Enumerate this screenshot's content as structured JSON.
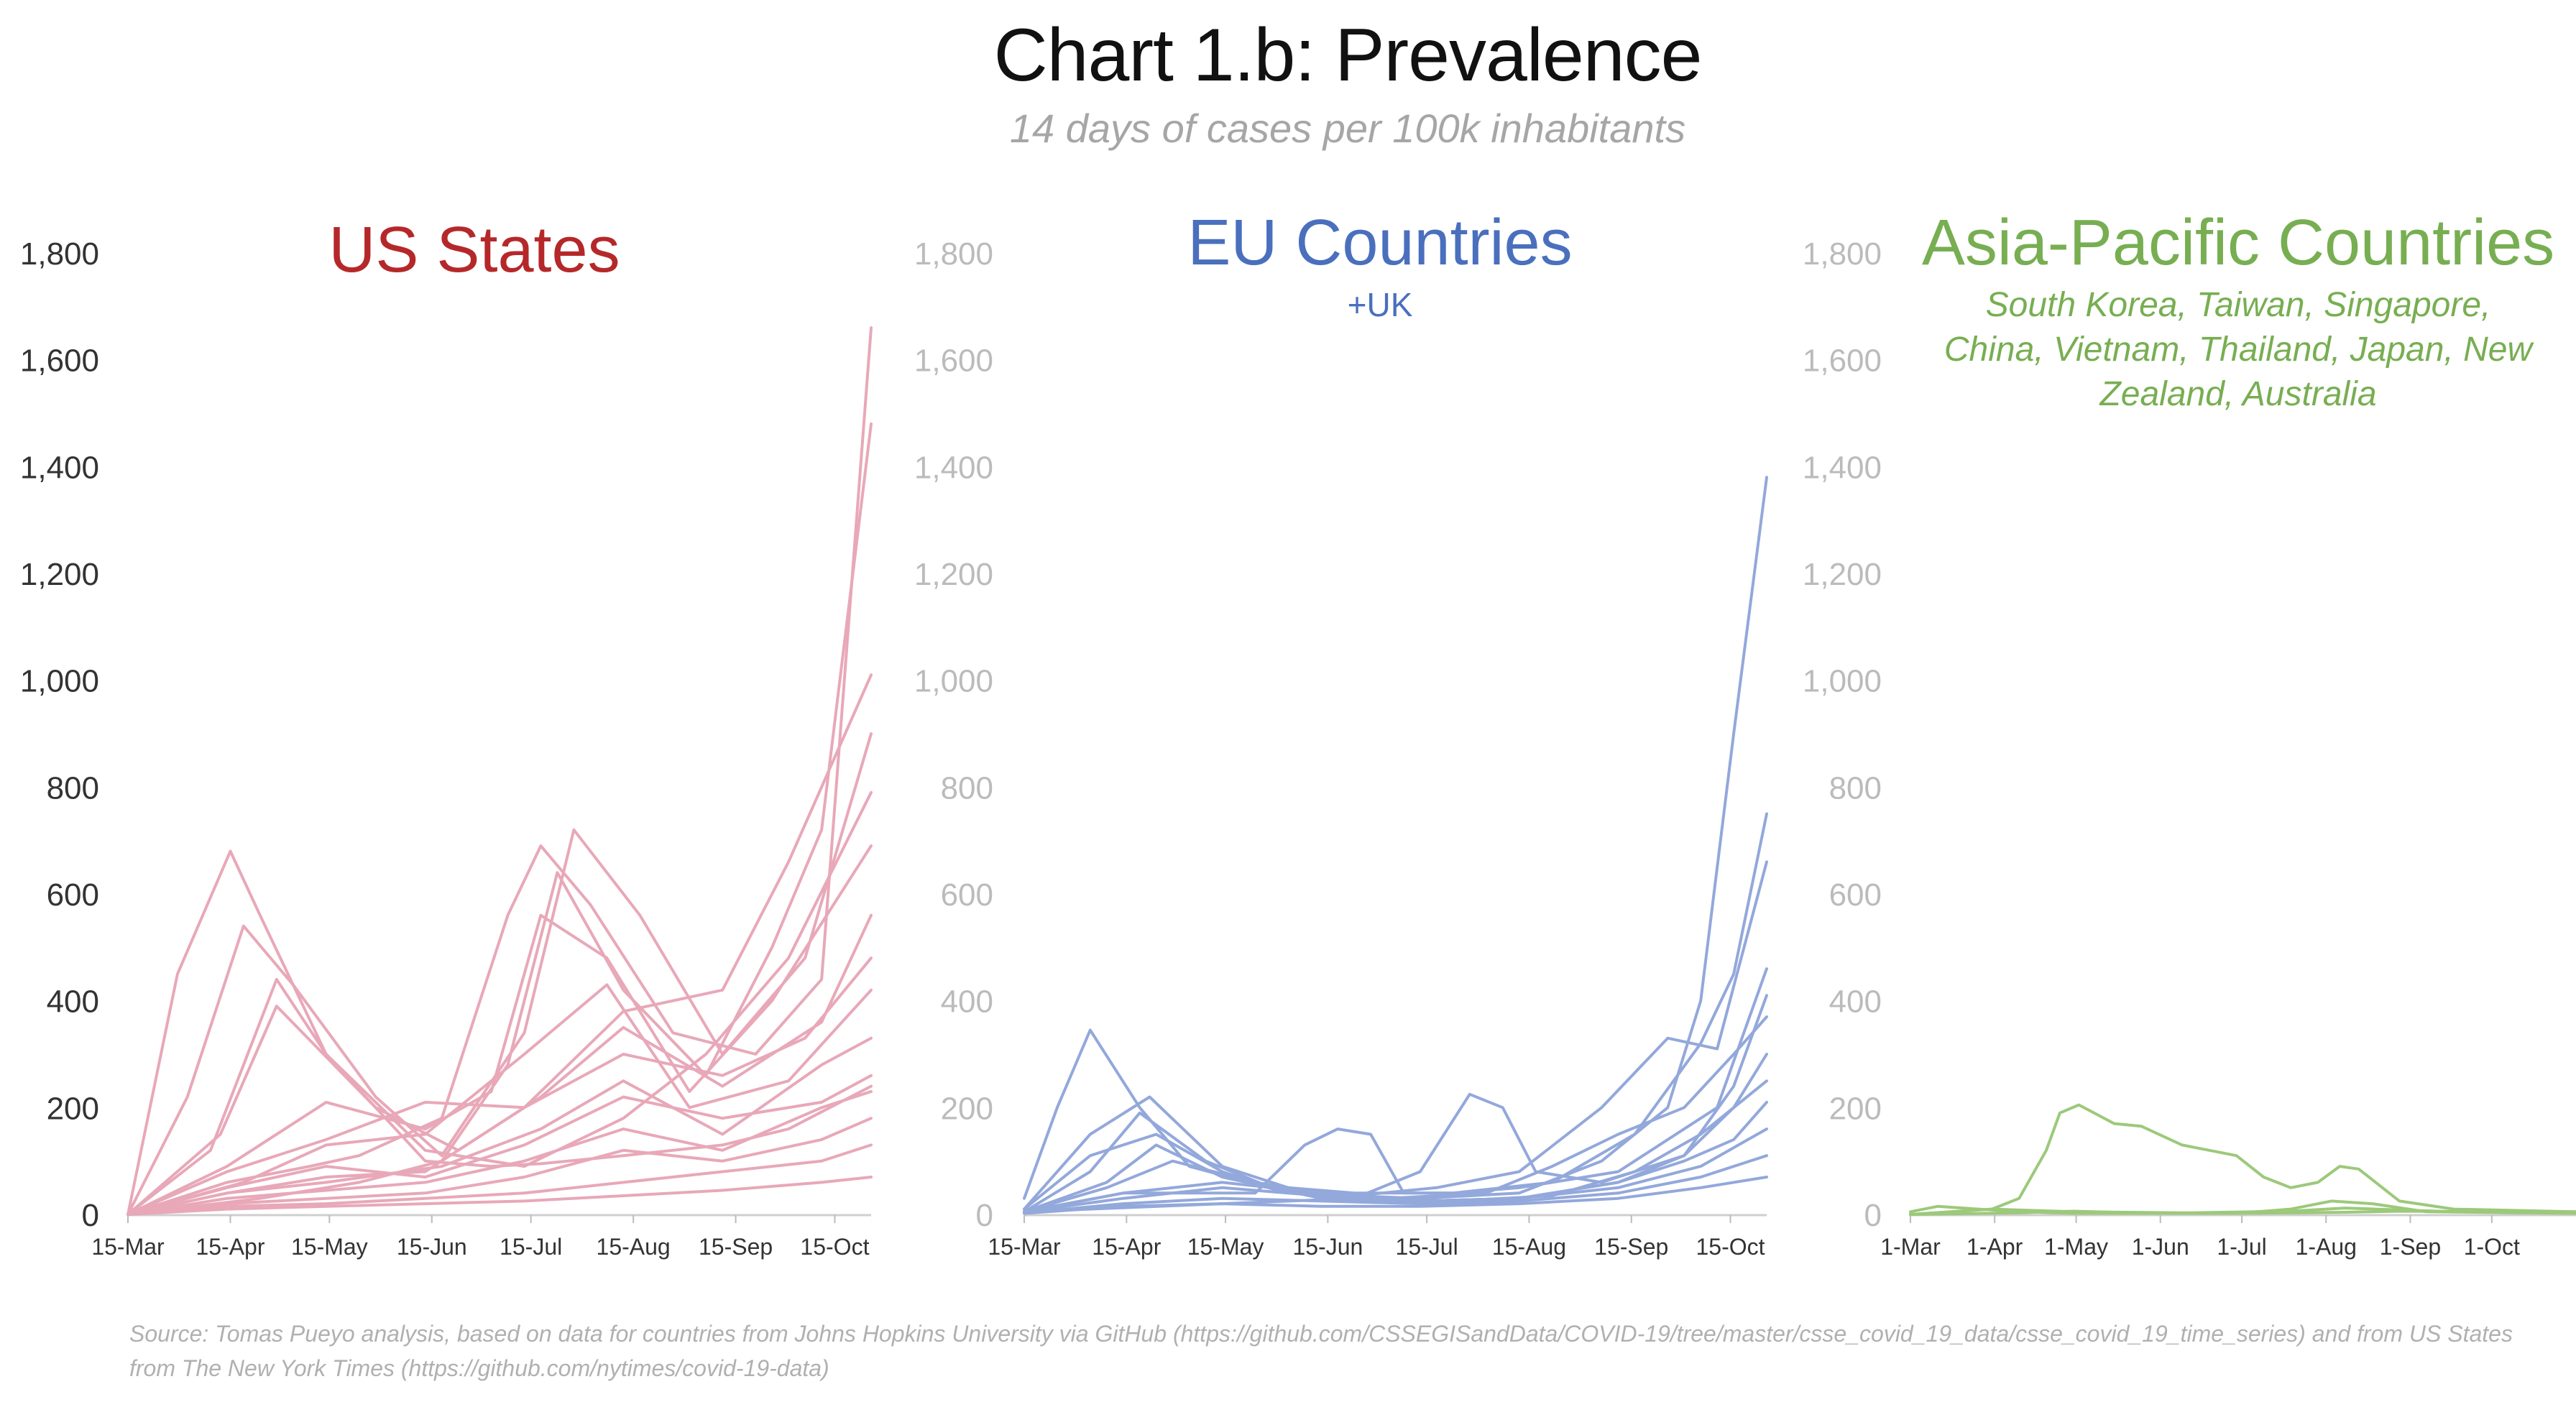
{
  "title": "Chart 1.b: Prevalence",
  "subtitle": "14 days of cases per 100k inhabitants",
  "source": "Source: Tomas Pueyo analysis, based on data for countries from Johns Hopkins University via GitHub (https://github.com/CSSEGISandData/COVID-19/tree/master/csse_covid_19_data/csse_covid_19_time_series) and from US States from The New York Times (https://github.com/nytimes/covid-19-data)",
  "chart_data": [
    {
      "type": "line",
      "title": "US States",
      "subtitle": "",
      "color": "#e8a8b8",
      "title_color": "#b5282a",
      "axis_color": "#333333",
      "ylim": [
        0,
        1800
      ],
      "yticks": [
        0,
        200,
        400,
        600,
        800,
        1000,
        1200,
        1400,
        1600,
        1800
      ],
      "ytick_labels": [
        "0",
        "200",
        "400",
        "600",
        "800",
        "1,000",
        "1,200",
        "1,400",
        "1,600",
        "1,800"
      ],
      "xlim": [
        0,
        225
      ],
      "xticks": [
        0,
        31,
        61,
        92,
        122,
        153,
        184,
        214
      ],
      "xtick_labels": [
        "15-Mar",
        "15-Apr",
        "15-May",
        "15-Jun",
        "15-Jul",
        "15-Aug",
        "15-Sep",
        "15-Oct"
      ],
      "series": [
        {
          "name": "state-1",
          "x": [
            0,
            15,
            31,
            40,
            60,
            90,
            110,
            125,
            150,
            180,
            200,
            225
          ],
          "y": [
            0,
            450,
            680,
            560,
            300,
            100,
            90,
            95,
            110,
            130,
            160,
            240
          ]
        },
        {
          "name": "state-2",
          "x": [
            0,
            18,
            35,
            50,
            75,
            95,
            120,
            135,
            155,
            180,
            205,
            225
          ],
          "y": [
            0,
            220,
            540,
            430,
            220,
            110,
            340,
            720,
            560,
            300,
            480,
            900
          ]
        },
        {
          "name": "state-3",
          "x": [
            0,
            30,
            55,
            70,
            95,
            115,
            125,
            140,
            165,
            190,
            210,
            225
          ],
          "y": [
            0,
            60,
            90,
            110,
            180,
            560,
            690,
            580,
            340,
            300,
            440,
            1660
          ]
        },
        {
          "name": "state-4",
          "x": [
            0,
            40,
            70,
            95,
            115,
            130,
            150,
            175,
            195,
            210,
            225
          ],
          "y": [
            0,
            30,
            60,
            100,
            280,
            640,
            420,
            260,
            500,
            720,
            1480
          ]
        },
        {
          "name": "state-5",
          "x": [
            0,
            30,
            60,
            90,
            120,
            150,
            180,
            200,
            225
          ],
          "y": [
            0,
            40,
            70,
            80,
            200,
            380,
            420,
            660,
            1010
          ]
        },
        {
          "name": "state-6",
          "x": [
            0,
            25,
            45,
            60,
            90,
            120,
            150,
            175,
            200,
            225
          ],
          "y": [
            0,
            120,
            440,
            300,
            120,
            90,
            180,
            300,
            480,
            790
          ]
        },
        {
          "name": "state-7",
          "x": [
            0,
            30,
            60,
            90,
            110,
            125,
            145,
            170,
            195,
            225
          ],
          "y": [
            0,
            90,
            210,
            160,
            230,
            560,
            480,
            230,
            400,
            690
          ]
        },
        {
          "name": "state-8",
          "x": [
            0,
            28,
            45,
            75,
            100,
            125,
            150,
            180,
            210,
            225
          ],
          "y": [
            0,
            150,
            390,
            200,
            120,
            220,
            350,
            240,
            360,
            560
          ]
        },
        {
          "name": "state-9",
          "x": [
            0,
            30,
            60,
            90,
            120,
            150,
            180,
            205,
            225
          ],
          "y": [
            0,
            80,
            140,
            210,
            200,
            300,
            260,
            330,
            480
          ]
        },
        {
          "name": "state-10",
          "x": [
            0,
            35,
            60,
            90,
            120,
            145,
            170,
            200,
            225
          ],
          "y": [
            0,
            60,
            130,
            150,
            300,
            430,
            200,
            250,
            420
          ]
        },
        {
          "name": "state-11",
          "x": [
            0,
            30,
            60,
            95,
            125,
            150,
            180,
            210,
            225
          ],
          "y": [
            0,
            40,
            60,
            90,
            160,
            250,
            150,
            280,
            330
          ]
        },
        {
          "name": "state-12",
          "x": [
            0,
            30,
            60,
            90,
            120,
            150,
            180,
            210,
            225
          ],
          "y": [
            0,
            50,
            90,
            70,
            130,
            220,
            180,
            210,
            260
          ]
        },
        {
          "name": "state-13",
          "x": [
            0,
            30,
            60,
            90,
            120,
            150,
            180,
            210,
            225
          ],
          "y": [
            0,
            30,
            45,
            60,
            100,
            160,
            120,
            200,
            230
          ]
        },
        {
          "name": "state-14",
          "x": [
            0,
            30,
            60,
            90,
            120,
            150,
            180,
            210,
            225
          ],
          "y": [
            0,
            20,
            30,
            40,
            70,
            120,
            100,
            140,
            180
          ]
        },
        {
          "name": "state-15",
          "x": [
            0,
            30,
            60,
            90,
            120,
            150,
            180,
            210,
            225
          ],
          "y": [
            0,
            15,
            20,
            30,
            40,
            60,
            80,
            100,
            130
          ]
        },
        {
          "name": "state-16",
          "x": [
            0,
            30,
            60,
            90,
            120,
            150,
            180,
            210,
            225
          ],
          "y": [
            0,
            10,
            15,
            20,
            25,
            35,
            45,
            60,
            70
          ]
        }
      ]
    },
    {
      "type": "line",
      "title": "EU Countries",
      "subtitle": "+UK",
      "color": "#93a8db",
      "title_color": "#4a6fbd",
      "axis_color": "#bbbbbb",
      "ylim": [
        0,
        1800
      ],
      "yticks": [
        0,
        200,
        400,
        600,
        800,
        1000,
        1200,
        1400,
        1600,
        1800
      ],
      "ytick_labels": [
        "0",
        "200",
        "400",
        "600",
        "800",
        "1,000",
        "1,200",
        "1,400",
        "1,600",
        "1,800"
      ],
      "xlim": [
        0,
        225
      ],
      "xticks": [
        0,
        31,
        61,
        92,
        122,
        153,
        184,
        214
      ],
      "xtick_labels": [
        "15-Mar",
        "15-Apr",
        "15-May",
        "15-Jun",
        "15-Jul",
        "15-Aug",
        "15-Sep",
        "15-Oct"
      ],
      "series": [
        {
          "name": "country-1",
          "x": [
            0,
            10,
            20,
            35,
            50,
            80,
            120,
            150,
            175,
            195,
            205,
            215,
            225
          ],
          "y": [
            30,
            200,
            345,
            200,
            90,
            40,
            30,
            40,
            100,
            200,
            400,
            900,
            1380
          ]
        },
        {
          "name": "country-2",
          "x": [
            0,
            20,
            38,
            60,
            80,
            100,
            130,
            160,
            185,
            205,
            215,
            225
          ],
          "y": [
            10,
            150,
            220,
            90,
            50,
            40,
            40,
            60,
            150,
            320,
            450,
            750
          ]
        },
        {
          "name": "country-3",
          "x": [
            0,
            20,
            40,
            60,
            80,
            100,
            125,
            150,
            175,
            195,
            210,
            225
          ],
          "y": [
            10,
            110,
            150,
            80,
            40,
            35,
            50,
            80,
            200,
            330,
            310,
            660
          ]
        },
        {
          "name": "country-4",
          "x": [
            0,
            30,
            70,
            85,
            95,
            105,
            115,
            130,
            150,
            180,
            210,
            225
          ],
          "y": [
            5,
            40,
            40,
            130,
            160,
            150,
            40,
            40,
            50,
            80,
            200,
            460
          ]
        },
        {
          "name": "country-5",
          "x": [
            0,
            60,
            100,
            120,
            135,
            145,
            155,
            175,
            200,
            215,
            225
          ],
          "y": [
            5,
            20,
            30,
            80,
            225,
            200,
            80,
            60,
            110,
            240,
            410
          ]
        },
        {
          "name": "country-6",
          "x": [
            0,
            20,
            35,
            55,
            75,
            110,
            140,
            160,
            180,
            200,
            215,
            225
          ],
          "y": [
            5,
            80,
            190,
            100,
            50,
            30,
            40,
            90,
            150,
            200,
            300,
            370
          ]
        },
        {
          "name": "country-7",
          "x": [
            0,
            25,
            40,
            60,
            90,
            120,
            150,
            180,
            200,
            215,
            225
          ],
          "y": [
            5,
            60,
            130,
            70,
            30,
            25,
            30,
            60,
            110,
            200,
            300
          ]
        },
        {
          "name": "country-8",
          "x": [
            0,
            25,
            45,
            70,
            100,
            130,
            160,
            185,
            205,
            225
          ],
          "y": [
            5,
            50,
            100,
            60,
            30,
            25,
            35,
            80,
            150,
            250
          ]
        },
        {
          "name": "country-9",
          "x": [
            0,
            30,
            60,
            90,
            120,
            150,
            180,
            200,
            215,
            225
          ],
          "y": [
            5,
            40,
            60,
            40,
            25,
            30,
            60,
            100,
            140,
            210
          ]
        },
        {
          "name": "country-10",
          "x": [
            0,
            30,
            60,
            90,
            120,
            150,
            180,
            205,
            225
          ],
          "y": [
            5,
            30,
            50,
            35,
            25,
            30,
            50,
            90,
            160
          ]
        },
        {
          "name": "country-11",
          "x": [
            0,
            30,
            60,
            90,
            120,
            150,
            180,
            205,
            225
          ],
          "y": [
            3,
            20,
            30,
            25,
            20,
            25,
            40,
            70,
            110
          ]
        },
        {
          "name": "country-12",
          "x": [
            0,
            30,
            60,
            90,
            120,
            150,
            180,
            205,
            225
          ],
          "y": [
            2,
            15,
            20,
            15,
            15,
            20,
            30,
            50,
            70
          ]
        }
      ]
    },
    {
      "type": "line",
      "title": "Asia-Pacific Countries",
      "subtitle": "South Korea, Taiwan, Singapore, China, Vietnam, Thailand, Japan, New Zealand, Australia",
      "color": "#9cc97a",
      "title_color": "#78ae52",
      "axis_color": "#bbbbbb",
      "ylim": [
        0,
        1800
      ],
      "yticks": [
        0,
        200,
        400,
        600,
        800,
        1000,
        1200,
        1400,
        1600,
        1800
      ],
      "ytick_labels": [
        "0",
        "200",
        "400",
        "600",
        "800",
        "1,000",
        "1,200",
        "1,400",
        "1,600",
        "1,800"
      ],
      "xlim": [
        0,
        245
      ],
      "xticks": [
        0,
        31,
        61,
        92,
        122,
        153,
        184,
        214
      ],
      "xtick_labels": [
        "1-Mar",
        "1-Apr",
        "1-May",
        "1-Jun",
        "1-Jul",
        "1-Aug",
        "1-Sep",
        "1-Oct"
      ],
      "series": [
        {
          "name": "singapore",
          "x": [
            0,
            30,
            40,
            50,
            55,
            62,
            75,
            85,
            100,
            120,
            130,
            140,
            150,
            158,
            165,
            180,
            200,
            245
          ],
          "y": [
            0,
            10,
            30,
            120,
            190,
            205,
            170,
            165,
            130,
            110,
            70,
            50,
            60,
            90,
            85,
            25,
            10,
            5
          ]
        },
        {
          "name": "australia",
          "x": [
            0,
            30,
            60,
            120,
            140,
            155,
            170,
            190,
            245
          ],
          "y": [
            0,
            10,
            5,
            2,
            10,
            25,
            20,
            5,
            2
          ]
        },
        {
          "name": "south-korea",
          "x": [
            0,
            10,
            25,
            40,
            60,
            120,
            160,
            180,
            245
          ],
          "y": [
            5,
            15,
            10,
            5,
            2,
            2,
            4,
            6,
            4
          ]
        },
        {
          "name": "japan",
          "x": [
            0,
            40,
            60,
            90,
            140,
            160,
            200,
            245
          ],
          "y": [
            0,
            3,
            6,
            2,
            6,
            12,
            5,
            4
          ]
        }
      ]
    }
  ]
}
